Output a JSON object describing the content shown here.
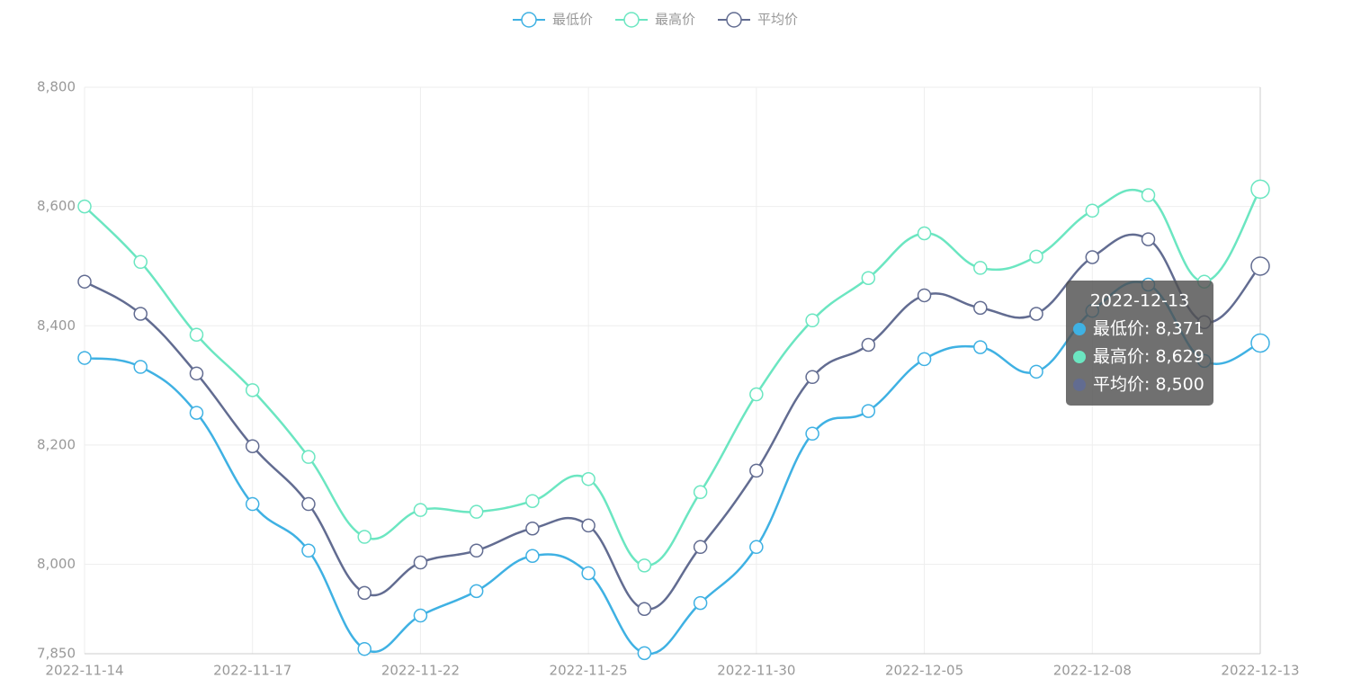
{
  "chart_data": {
    "type": "line",
    "categories": [
      "2022-11-14",
      null,
      null,
      "2022-11-17",
      null,
      null,
      "2022-11-22",
      null,
      null,
      "2022-11-25",
      null,
      null,
      "2022-11-30",
      null,
      null,
      "2022-12-05",
      null,
      null,
      "2022-12-08",
      null,
      null,
      "2022-12-13"
    ],
    "series": [
      {
        "name": "最低价",
        "color": "#3fb1e3",
        "values": [
          8346,
          8331,
          8254,
          8101,
          8023,
          7858,
          7914,
          7955,
          8014,
          7985,
          7851,
          7935,
          8029,
          8219,
          8257,
          8344,
          8364,
          8323,
          8425,
          8469,
          8341,
          8371
        ]
      },
      {
        "name": "最高价",
        "color": "#6be6c1",
        "values": [
          8600,
          8507,
          8385,
          8292,
          8180,
          8046,
          8091,
          8088,
          8106,
          8143,
          7998,
          8121,
          8285,
          8409,
          8480,
          8555,
          8497,
          8516,
          8593,
          8619,
          8474,
          8629
        ]
      },
      {
        "name": "平均价",
        "color": "#626c91",
        "values": [
          8474,
          8420,
          8320,
          8198,
          8101,
          7952,
          8003,
          8023,
          8060,
          8065,
          7925,
          8029,
          8157,
          8314,
          8368,
          8451,
          8430,
          8420,
          8515,
          8545,
          8406,
          8500
        ]
      }
    ],
    "ylim": [
      7850,
      8800
    ],
    "yticks": [
      {
        "value": 7850,
        "label": "7,850"
      },
      {
        "value": 8000,
        "label": "8,000"
      },
      {
        "value": 8200,
        "label": "8,200"
      },
      {
        "value": 8400,
        "label": "8,400"
      },
      {
        "value": 8600,
        "label": "8,600"
      },
      {
        "value": 8800,
        "label": "8,800"
      }
    ],
    "grid": true,
    "legend": "top",
    "tooltip": {
      "title": "2022-12-13",
      "items": [
        "最低价: 8,371",
        "最高价: 8,629",
        "平均价: 8,500"
      ]
    }
  }
}
